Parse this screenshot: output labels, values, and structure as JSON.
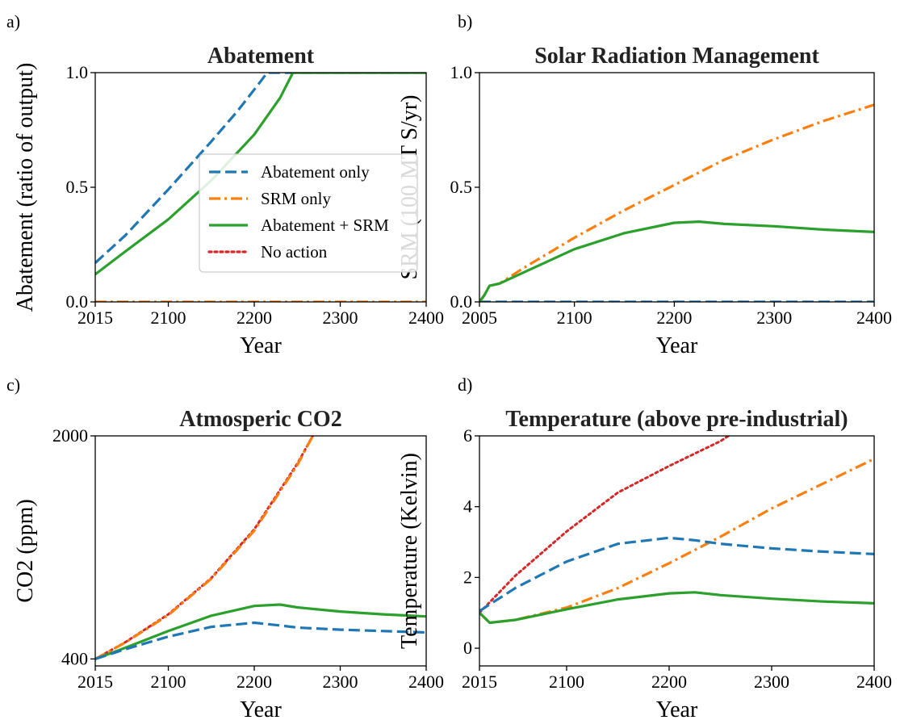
{
  "colors": {
    "abatement_only": "#1f77b4",
    "srm_only": "#ff7f0e",
    "abatement_srm": "#2ca02c",
    "no_action": "#d62728"
  },
  "legend": {
    "panel": "a",
    "placement": "center-right",
    "entries": [
      {
        "label": "Abatement only",
        "color": "#1f77b4",
        "style": "dashed"
      },
      {
        "label": "SRM only",
        "color": "#ff7f0e",
        "style": "dashdot"
      },
      {
        "label": "Abatement + SRM",
        "color": "#2ca02c",
        "style": "solid"
      },
      {
        "label": "No action",
        "color": "#d62728",
        "style": "dotted"
      }
    ]
  },
  "chart_data": [
    {
      "id": "a",
      "letter": "a)",
      "type": "line",
      "title": "Abatement",
      "xlabel": "Year",
      "ylabel": "Abatement (ratio of output)",
      "xlim": [
        2015,
        2400
      ],
      "ylim": [
        0,
        1.0
      ],
      "xticks": [
        2015,
        2100,
        2200,
        2300,
        2400
      ],
      "xtick_labels": [
        "2015",
        "2100",
        "2200",
        "2300",
        "2400"
      ],
      "yticks": [
        0,
        0.5,
        1.0
      ],
      "ytick_labels": [
        "0.0",
        "0.5",
        "1.0"
      ],
      "grid": false,
      "series": [
        {
          "key": "abatement_only",
          "style": "dashed",
          "x": [
            2015,
            2050,
            2100,
            2150,
            2180,
            2205,
            2215,
            2400
          ],
          "y": [
            0.17,
            0.29,
            0.49,
            0.7,
            0.83,
            0.95,
            1.0,
            1.0
          ]
        },
        {
          "key": "srm_only",
          "style": "dashdot",
          "x": [
            2015,
            2400
          ],
          "y": [
            0.0,
            0.0
          ]
        },
        {
          "key": "abatement_srm",
          "style": "solid",
          "x": [
            2015,
            2050,
            2100,
            2150,
            2200,
            2230,
            2245,
            2400
          ],
          "y": [
            0.12,
            0.22,
            0.36,
            0.53,
            0.73,
            0.89,
            1.0,
            1.0
          ]
        }
      ]
    },
    {
      "id": "b",
      "letter": "b)",
      "type": "line",
      "title": "Solar Radiation Management",
      "xlabel": "Year",
      "ylabel": "SRM (100 MT S/yr)",
      "xlim": [
        2005,
        2400
      ],
      "ylim": [
        0,
        1.0
      ],
      "xticks": [
        2005,
        2100,
        2200,
        2300,
        2400
      ],
      "xtick_labels": [
        "2005",
        "2100",
        "2200",
        "2300",
        "2400"
      ],
      "yticks": [
        0,
        0.5,
        1.0
      ],
      "ytick_labels": [
        "0.0",
        "0.5",
        "1.0"
      ],
      "grid": false,
      "series": [
        {
          "key": "abatement_only",
          "style": "dashed",
          "x": [
            2005,
            2400
          ],
          "y": [
            0.0,
            0.0
          ]
        },
        {
          "key": "srm_only",
          "style": "dashdot",
          "x": [
            2005,
            2010,
            2015,
            2025,
            2050,
            2100,
            2150,
            2200,
            2250,
            2300,
            2350,
            2400
          ],
          "y": [
            0.0,
            0.03,
            0.07,
            0.08,
            0.15,
            0.28,
            0.4,
            0.51,
            0.62,
            0.71,
            0.79,
            0.86
          ]
        },
        {
          "key": "abatement_srm",
          "style": "solid",
          "x": [
            2005,
            2010,
            2015,
            2025,
            2050,
            2100,
            2150,
            2200,
            2225,
            2250,
            2300,
            2350,
            2400
          ],
          "y": [
            0.0,
            0.03,
            0.07,
            0.08,
            0.13,
            0.23,
            0.3,
            0.345,
            0.35,
            0.34,
            0.33,
            0.315,
            0.305
          ]
        }
      ]
    },
    {
      "id": "c",
      "letter": "c)",
      "type": "line",
      "title": "Atmosperic CO2",
      "xlabel": "Year",
      "ylabel": "CO2 (ppm)",
      "xlim": [
        2015,
        2400
      ],
      "ylim": [
        350,
        2000
      ],
      "xticks": [
        2015,
        2100,
        2200,
        2300,
        2400
      ],
      "xtick_labels": [
        "2015",
        "2100",
        "2200",
        "2300",
        "2400"
      ],
      "yticks": [
        400,
        2000
      ],
      "ytick_labels": [
        "400",
        "2000"
      ],
      "grid": false,
      "series": [
        {
          "key": "no_action",
          "style": "dotted",
          "x": [
            2015,
            2050,
            2100,
            2150,
            2200,
            2250,
            2268
          ],
          "y": [
            400,
            520,
            720,
            980,
            1330,
            1800,
            2000
          ]
        },
        {
          "key": "srm_only",
          "style": "dashdot",
          "x": [
            2015,
            2050,
            2100,
            2150,
            2200,
            2250,
            2268
          ],
          "y": [
            400,
            518,
            715,
            975,
            1320,
            1790,
            2000
          ]
        },
        {
          "key": "abatement_srm",
          "style": "solid",
          "x": [
            2015,
            2050,
            2100,
            2150,
            2200,
            2230,
            2250,
            2300,
            2350,
            2400
          ],
          "y": [
            400,
            480,
            600,
            710,
            780,
            790,
            770,
            740,
            720,
            705
          ]
        },
        {
          "key": "abatement_only",
          "style": "dashed",
          "x": [
            2015,
            2050,
            2100,
            2150,
            2200,
            2230,
            2250,
            2300,
            2350,
            2400
          ],
          "y": [
            400,
            470,
            560,
            630,
            660,
            640,
            625,
            610,
            600,
            590
          ]
        }
      ]
    },
    {
      "id": "d",
      "letter": "d)",
      "type": "line",
      "title": "Temperature (above pre-industrial)",
      "xlabel": "Year",
      "ylabel": "Temperature (Kelvin)",
      "xlim": [
        2015,
        2400
      ],
      "ylim": [
        -0.5,
        6
      ],
      "xticks": [
        2015,
        2100,
        2200,
        2300,
        2400
      ],
      "xtick_labels": [
        "2015",
        "2100",
        "2200",
        "2300",
        "2400"
      ],
      "yticks": [
        0,
        2,
        4,
        6
      ],
      "ytick_labels": [
        "0",
        "2",
        "4",
        "6"
      ],
      "grid": false,
      "series": [
        {
          "key": "no_action",
          "style": "dotted",
          "x": [
            2015,
            2050,
            2100,
            2150,
            2200,
            2250,
            2258
          ],
          "y": [
            1.0,
            2.05,
            3.3,
            4.4,
            5.15,
            5.85,
            6.0
          ]
        },
        {
          "key": "srm_only",
          "style": "dashdot",
          "x": [
            2015,
            2025,
            2050,
            2100,
            2150,
            2200,
            2250,
            2300,
            2350,
            2400
          ],
          "y": [
            1.0,
            0.72,
            0.8,
            1.15,
            1.7,
            2.4,
            3.15,
            3.95,
            4.65,
            5.35
          ]
        },
        {
          "key": "abatement_only",
          "style": "dashed",
          "x": [
            2015,
            2050,
            2100,
            2150,
            2200,
            2225,
            2250,
            2300,
            2350,
            2400
          ],
          "y": [
            1.05,
            1.7,
            2.45,
            2.95,
            3.12,
            3.05,
            2.95,
            2.82,
            2.73,
            2.66
          ]
        },
        {
          "key": "abatement_srm",
          "style": "solid",
          "x": [
            2015,
            2025,
            2050,
            2100,
            2150,
            2200,
            2225,
            2250,
            2300,
            2350,
            2400
          ],
          "y": [
            1.0,
            0.72,
            0.8,
            1.1,
            1.38,
            1.55,
            1.58,
            1.5,
            1.4,
            1.32,
            1.27
          ]
        }
      ]
    }
  ]
}
